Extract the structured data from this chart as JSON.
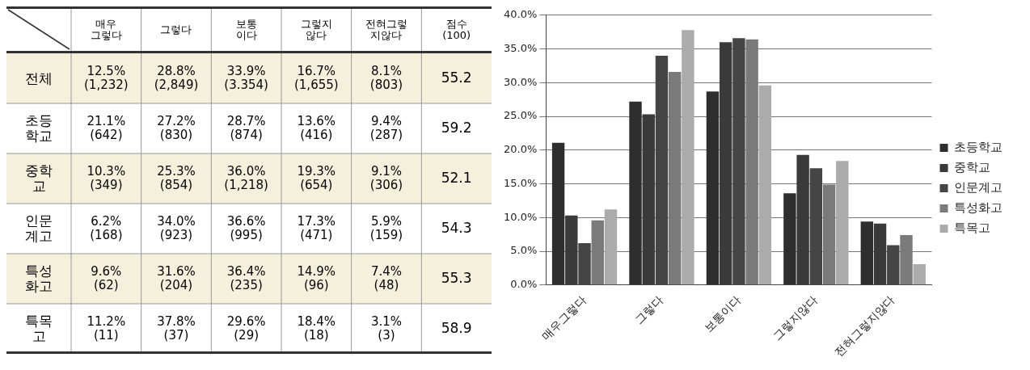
{
  "chart_data": [
    {
      "type": "other",
      "categories": [
        "매우\n그렇다",
        "그렇다",
        "보통\n이다",
        "그렇지\n않다",
        "전혀그렇\n지않다",
        "점수\n(100)"
      ],
      "y_categories": [
        "전체",
        "초등\n학교",
        "중학\n교",
        "인문\n계고",
        "특성\n화고",
        "특목\n고"
      ],
      "cell_labels": [
        [
          "12.5%\n(1,232)",
          "28.8%\n(2,849)",
          "33.9%\n(3.354)",
          "16.7%\n(1,655)",
          "8.1%\n(803)",
          "55.2"
        ],
        [
          "21.1%\n(642)",
          "27.2%\n(830)",
          "28.7%\n(874)",
          "13.6%\n(416)",
          "9.4%\n(287)",
          "59.2"
        ],
        [
          "10.3%\n(349)",
          "25.3%\n(854)",
          "36.0%\n(1,218)",
          "19.3%\n(654)",
          "9.1%\n(306)",
          "52.1"
        ],
        [
          "6.2%\n(168)",
          "34.0%\n(923)",
          "36.6%\n(995)",
          "17.3%\n(471)",
          "5.9%\n(159)",
          "54.3"
        ],
        [
          "9.6%\n(62)",
          "31.6%\n(204)",
          "36.4%\n(235)",
          "14.9%\n(96)",
          "7.4%\n(48)",
          "55.3"
        ],
        [
          "11.2%\n(11)",
          "37.8%\n(37)",
          "29.6%\n(29)",
          "18.4%\n(18)",
          "3.1%\n(3)",
          "58.9"
        ]
      ]
    },
    {
      "type": "bar",
      "categories": [
        "매우그렇다",
        "그렇다",
        "보통이다",
        "그렇지않다",
        "전혀그렇지않다"
      ],
      "series": [
        {
          "name": "초등학교",
          "color": "#2e2e2e",
          "values": [
            21.1,
            27.2,
            28.7,
            13.6,
            9.4
          ]
        },
        {
          "name": "중학교",
          "color": "#3a3a3a",
          "values": [
            10.3,
            25.3,
            36.0,
            19.3,
            9.1
          ]
        },
        {
          "name": "인문계고",
          "color": "#454545",
          "values": [
            6.2,
            34.0,
            36.6,
            17.3,
            5.9
          ]
        },
        {
          "name": "특성화고",
          "color": "#7a7a7a",
          "values": [
            9.6,
            31.6,
            36.4,
            14.9,
            7.4
          ]
        },
        {
          "name": "특목고",
          "color": "#ababab",
          "values": [
            11.2,
            37.8,
            29.6,
            18.4,
            3.1
          ]
        }
      ],
      "ylim": [
        0,
        40
      ],
      "yticks": [
        {
          "value": 0,
          "label": "0.0%"
        },
        {
          "value": 5,
          "label": "5.0%"
        },
        {
          "value": 10,
          "label": "10.0%"
        },
        {
          "value": 15,
          "label": "15.0%"
        },
        {
          "value": 20,
          "label": "20.0%"
        },
        {
          "value": 25,
          "label": "25.0%"
        },
        {
          "value": 30,
          "label": "30.0%"
        },
        {
          "value": 35,
          "label": "35.0%"
        },
        {
          "value": 40,
          "label": "40.0%"
        }
      ],
      "grid": "y",
      "legend": "right"
    }
  ]
}
